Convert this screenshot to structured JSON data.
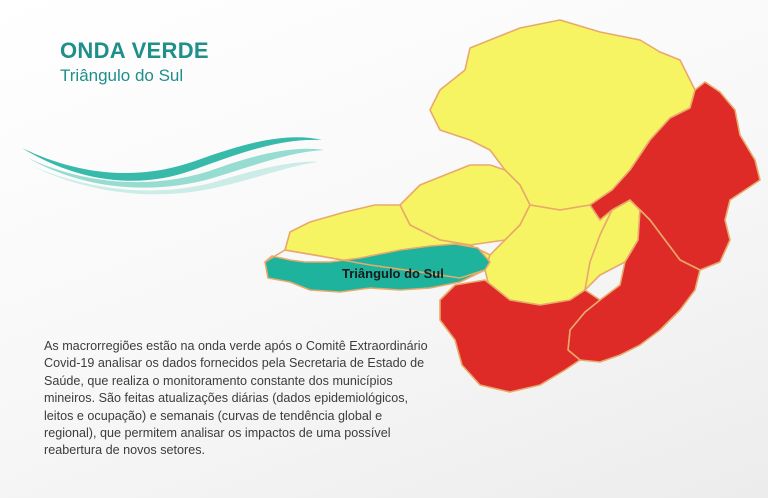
{
  "header": {
    "title": "ONDA VERDE",
    "subtitle": "Triângulo do Sul"
  },
  "map": {
    "highlight_label": "Triângulo do Sul",
    "legend_colors": {
      "green": "#1db39c",
      "yellow": "#f7f464",
      "red": "#df2b27",
      "border": "#e8a96b"
    }
  },
  "description": "As macrorregiões estão na onda verde após o Comitê Extraordinário Covid-19 analisar os dados fornecidos pela Secretaria de Estado de Saúde, que realiza o monitoramento constante dos municípios mineiros. São feitas atualizações diárias (dados epidemiológicos, leitos e ocupação) e semanais (curvas de tendência global e regional), que permitem analisar os impactos de uma possível reabertura de novos setores."
}
